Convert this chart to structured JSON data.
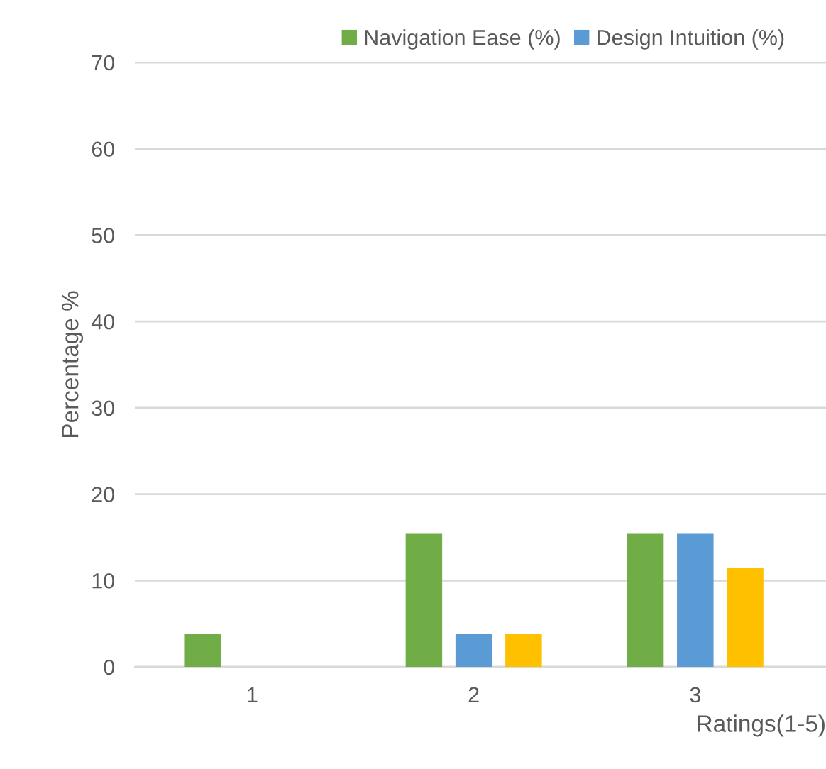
{
  "chart_data": {
    "type": "bar",
    "xlabel": "Ratings(1-5)",
    "ylabel": "Percentage %",
    "categories": [
      "1",
      "2",
      "3"
    ],
    "series": [
      {
        "name": "Navigation Ease (%)",
        "color": "#70ad47",
        "values": [
          3.8,
          15.4,
          15.4
        ]
      },
      {
        "name": "Design Intuition (%)",
        "color": "#5b9bd5",
        "values": [
          0,
          3.8,
          15.4
        ]
      },
      {
        "color": "#ffc000",
        "values": [
          0,
          3.8,
          11.5
        ]
      }
    ],
    "ylim": [
      0,
      70
    ],
    "yticks": [
      0,
      10,
      20,
      30,
      40,
      50,
      60,
      70
    ],
    "grid": "y",
    "legend": "top"
  }
}
